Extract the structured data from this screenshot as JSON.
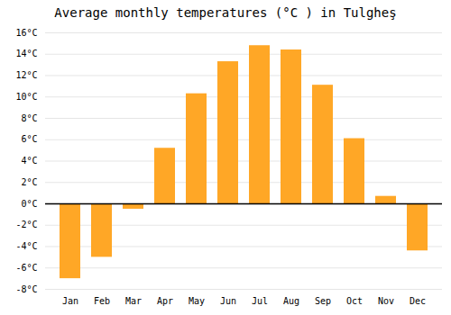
{
  "chart_data": {
    "type": "bar",
    "title": "Average monthly temperatures (°C ) in Tulgheş",
    "categories": [
      "Jan",
      "Feb",
      "Mar",
      "Apr",
      "May",
      "Jun",
      "Jul",
      "Aug",
      "Sep",
      "Oct",
      "Nov",
      "Dec"
    ],
    "values": [
      -7.0,
      -5.0,
      -0.5,
      5.2,
      10.3,
      13.3,
      14.8,
      14.4,
      11.1,
      6.1,
      0.7,
      -4.4
    ],
    "color": "#FFA726",
    "ylim": [
      -8,
      16
    ],
    "yticks": [
      {
        "value": -8,
        "label": "-8°C"
      },
      {
        "value": -6,
        "label": "-6°C"
      },
      {
        "value": -4,
        "label": "-4°C"
      },
      {
        "value": -2,
        "label": "-2°C"
      },
      {
        "value": 0,
        "label": "0°C"
      },
      {
        "value": 2,
        "label": "2°C"
      },
      {
        "value": 4,
        "label": "4°C"
      },
      {
        "value": 6,
        "label": "6°C"
      },
      {
        "value": 8,
        "label": "8°C"
      },
      {
        "value": 10,
        "label": "10°C"
      },
      {
        "value": 12,
        "label": "12°C"
      },
      {
        "value": 14,
        "label": "14°C"
      },
      {
        "value": 16,
        "label": "16°C"
      }
    ],
    "grid": true
  }
}
